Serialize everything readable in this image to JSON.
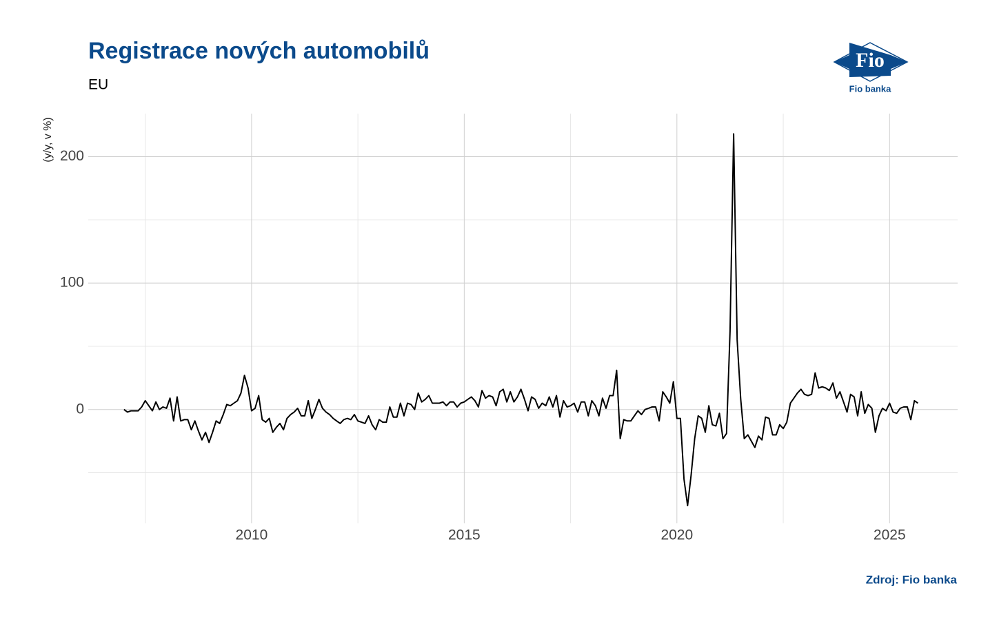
{
  "chart_data": {
    "type": "line",
    "title": "Registrace nových automobilů",
    "subtitle": "EU",
    "y_label": "(y/y, v %)",
    "source": "Zdroj: Fio banka",
    "logo": {
      "mark": "Fio",
      "name": "Fio banka"
    },
    "xlim": [
      2006.16,
      2026.6
    ],
    "ylim": [
      -90,
      234
    ],
    "xticks": [
      2010,
      2015,
      2020,
      2025
    ],
    "yticks": [
      0,
      100,
      200
    ],
    "xminorticks": [
      2007.5,
      2012.5,
      2017.5,
      2022.5
    ],
    "yminorticks": [
      -50,
      50,
      150
    ],
    "grid": true,
    "series": [
      {
        "name": "EU",
        "color": "#000000",
        "x": [
          2007.0,
          2007.083,
          2007.167,
          2007.25,
          2007.333,
          2007.417,
          2007.5,
          2007.583,
          2007.667,
          2007.75,
          2007.833,
          2007.917,
          2008.0,
          2008.083,
          2008.167,
          2008.25,
          2008.333,
          2008.417,
          2008.5,
          2008.583,
          2008.667,
          2008.75,
          2008.833,
          2008.917,
          2009.0,
          2009.083,
          2009.167,
          2009.25,
          2009.333,
          2009.417,
          2009.5,
          2009.583,
          2009.667,
          2009.75,
          2009.833,
          2009.917,
          2010.0,
          2010.083,
          2010.167,
          2010.25,
          2010.333,
          2010.417,
          2010.5,
          2010.583,
          2010.667,
          2010.75,
          2010.833,
          2010.917,
          2011.0,
          2011.083,
          2011.167,
          2011.25,
          2011.333,
          2011.417,
          2011.5,
          2011.583,
          2011.667,
          2011.75,
          2011.833,
          2011.917,
          2012.0,
          2012.083,
          2012.167,
          2012.25,
          2012.333,
          2012.417,
          2012.5,
          2012.583,
          2012.667,
          2012.75,
          2012.833,
          2012.917,
          2013.0,
          2013.083,
          2013.167,
          2013.25,
          2013.333,
          2013.417,
          2013.5,
          2013.583,
          2013.667,
          2013.75,
          2013.833,
          2013.917,
          2014.0,
          2014.083,
          2014.167,
          2014.25,
          2014.333,
          2014.417,
          2014.5,
          2014.583,
          2014.667,
          2014.75,
          2014.833,
          2014.917,
          2015.0,
          2015.083,
          2015.167,
          2015.25,
          2015.333,
          2015.417,
          2015.5,
          2015.583,
          2015.667,
          2015.75,
          2015.833,
          2015.917,
          2016.0,
          2016.083,
          2016.167,
          2016.25,
          2016.333,
          2016.417,
          2016.5,
          2016.583,
          2016.667,
          2016.75,
          2016.833,
          2016.917,
          2017.0,
          2017.083,
          2017.167,
          2017.25,
          2017.333,
          2017.417,
          2017.5,
          2017.583,
          2017.667,
          2017.75,
          2017.833,
          2017.917,
          2018.0,
          2018.083,
          2018.167,
          2018.25,
          2018.333,
          2018.417,
          2018.5,
          2018.583,
          2018.667,
          2018.75,
          2018.833,
          2018.917,
          2019.0,
          2019.083,
          2019.167,
          2019.25,
          2019.333,
          2019.417,
          2019.5,
          2019.583,
          2019.667,
          2019.75,
          2019.833,
          2019.917,
          2020.0,
          2020.083,
          2020.167,
          2020.25,
          2020.333,
          2020.417,
          2020.5,
          2020.583,
          2020.667,
          2020.75,
          2020.833,
          2020.917,
          2021.0,
          2021.083,
          2021.167,
          2021.25,
          2021.333,
          2021.417,
          2021.5,
          2021.583,
          2021.667,
          2021.75,
          2021.833,
          2021.917,
          2022.0,
          2022.083,
          2022.167,
          2022.25,
          2022.333,
          2022.417,
          2022.5,
          2022.583,
          2022.667,
          2022.75,
          2022.833,
          2022.917,
          2023.0,
          2023.083,
          2023.167,
          2023.25,
          2023.333,
          2023.417,
          2023.5,
          2023.583,
          2023.667,
          2023.75,
          2023.833,
          2023.917,
          2024.0,
          2024.083,
          2024.167,
          2024.25,
          2024.333,
          2024.417,
          2024.5,
          2024.583,
          2024.667,
          2024.75,
          2024.833,
          2024.917,
          2025.0,
          2025.083,
          2025.167,
          2025.25,
          2025.333,
          2025.417,
          2025.5,
          2025.583,
          2025.667
        ],
        "values": [
          0,
          -2,
          -1,
          -1,
          -1,
          2,
          7,
          3,
          -1,
          6,
          0,
          2,
          1,
          9,
          -9,
          10,
          -9,
          -8,
          -8,
          -16,
          -9,
          -17,
          -24,
          -18,
          -26,
          -18,
          -9,
          -11,
          -4,
          4,
          3,
          5,
          7,
          13,
          27,
          17,
          -1,
          1,
          11,
          -8,
          -10,
          -7,
          -18,
          -14,
          -11,
          -16,
          -7,
          -4,
          -2,
          1,
          -5,
          -5,
          7,
          -7,
          0,
          8,
          1,
          -2,
          -4,
          -7,
          -9,
          -11,
          -8,
          -7,
          -8,
          -4,
          -9,
          -10,
          -11,
          -5,
          -12,
          -16,
          -8,
          -10,
          -10,
          2,
          -6,
          -6,
          5,
          -5,
          5,
          4,
          0,
          13,
          6,
          8,
          11,
          5,
          5,
          5,
          6,
          3,
          6,
          6,
          2,
          5,
          6,
          8,
          10,
          7,
          2,
          15,
          9,
          11,
          10,
          3,
          14,
          16,
          6,
          14,
          6,
          10,
          16,
          8,
          -1,
          10,
          8,
          1,
          5,
          3,
          10,
          2,
          11,
          -6,
          7,
          2,
          3,
          5,
          -2,
          6,
          6,
          -5,
          7,
          3,
          -5,
          9,
          1,
          11,
          11,
          31,
          -23,
          -8,
          -9,
          -9,
          -5,
          -1,
          -4,
          0,
          1,
          2,
          2,
          -9,
          14,
          10,
          5,
          22,
          -7,
          -7,
          -55,
          -76,
          -52,
          -23,
          -5,
          -7,
          -18,
          3,
          -12,
          -13,
          -3,
          -23,
          -19,
          62,
          218,
          55,
          8,
          -23,
          -20,
          -25,
          -30,
          -21,
          -24,
          -6,
          -7,
          -20,
          -20,
          -12,
          -15,
          -10,
          5,
          9,
          13,
          16,
          12,
          11,
          12,
          29,
          17,
          18,
          17,
          15,
          21,
          9,
          14,
          6,
          -2,
          12,
          10,
          -5,
          14,
          -3,
          4,
          1,
          -18,
          -5,
          1,
          -1,
          5,
          -2,
          -3,
          1,
          2,
          2,
          -8,
          7,
          5
        ]
      }
    ]
  }
}
